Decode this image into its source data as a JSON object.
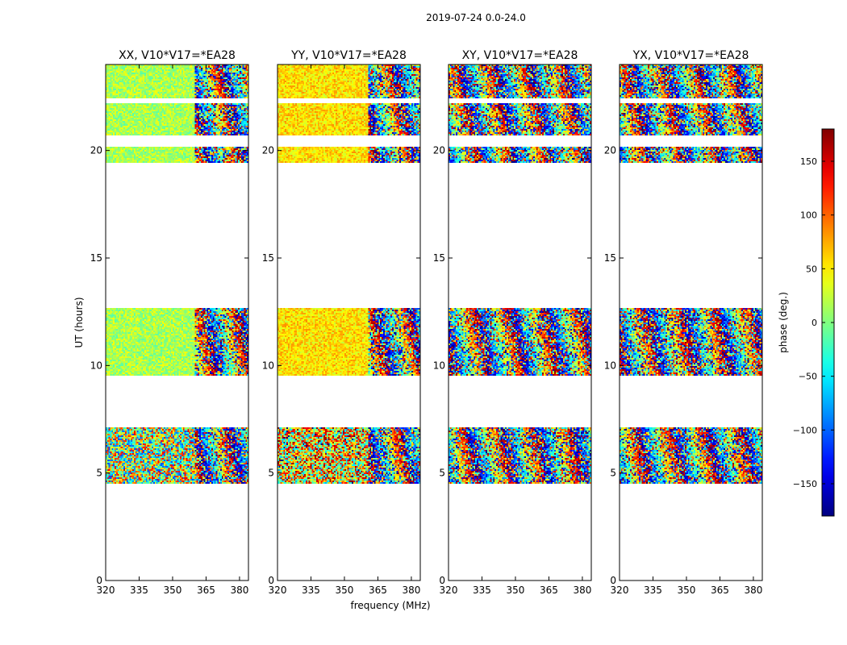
{
  "chart_data": {
    "type": "heatmap",
    "suptitle": "2019-07-24 0.0-24.0",
    "xlabel": "frequency (MHz)",
    "ylabel": "UT (hours)",
    "xlim": [
      320,
      384
    ],
    "ylim": [
      0,
      24
    ],
    "xticks": [
      320,
      335,
      350,
      365,
      380
    ],
    "yticks": [
      0,
      5,
      10,
      15,
      20
    ],
    "colorbar": {
      "label": "phase (deg.)",
      "range": [
        -180,
        180
      ],
      "ticks": [
        150,
        100,
        50,
        0,
        -50,
        -100,
        -150
      ],
      "colormap": "jet"
    },
    "time_blocks_hours": [
      [
        4.5,
        7.1
      ],
      [
        9.5,
        12.7
      ],
      [
        19.4,
        20.2
      ],
      [
        20.7,
        22.2
      ],
      [
        22.4,
        24.0
      ]
    ],
    "panels": [
      {
        "title": "XX, V10*V17=*EA28",
        "coherent_until_mhz": 360,
        "base_phase_deg": 15,
        "coherence": "high"
      },
      {
        "title": "YY, V10*V17=*EA28",
        "coherent_until_mhz": 361,
        "base_phase_deg": 55,
        "coherence": "high"
      },
      {
        "title": "XY, V10*V17=*EA28",
        "coherent_until_mhz": 320,
        "base_phase_deg": 0,
        "coherence": "noise"
      },
      {
        "title": "YX, V10*V17=*EA28",
        "coherent_until_mhz": 320,
        "base_phase_deg": 0,
        "coherence": "noise"
      }
    ]
  }
}
